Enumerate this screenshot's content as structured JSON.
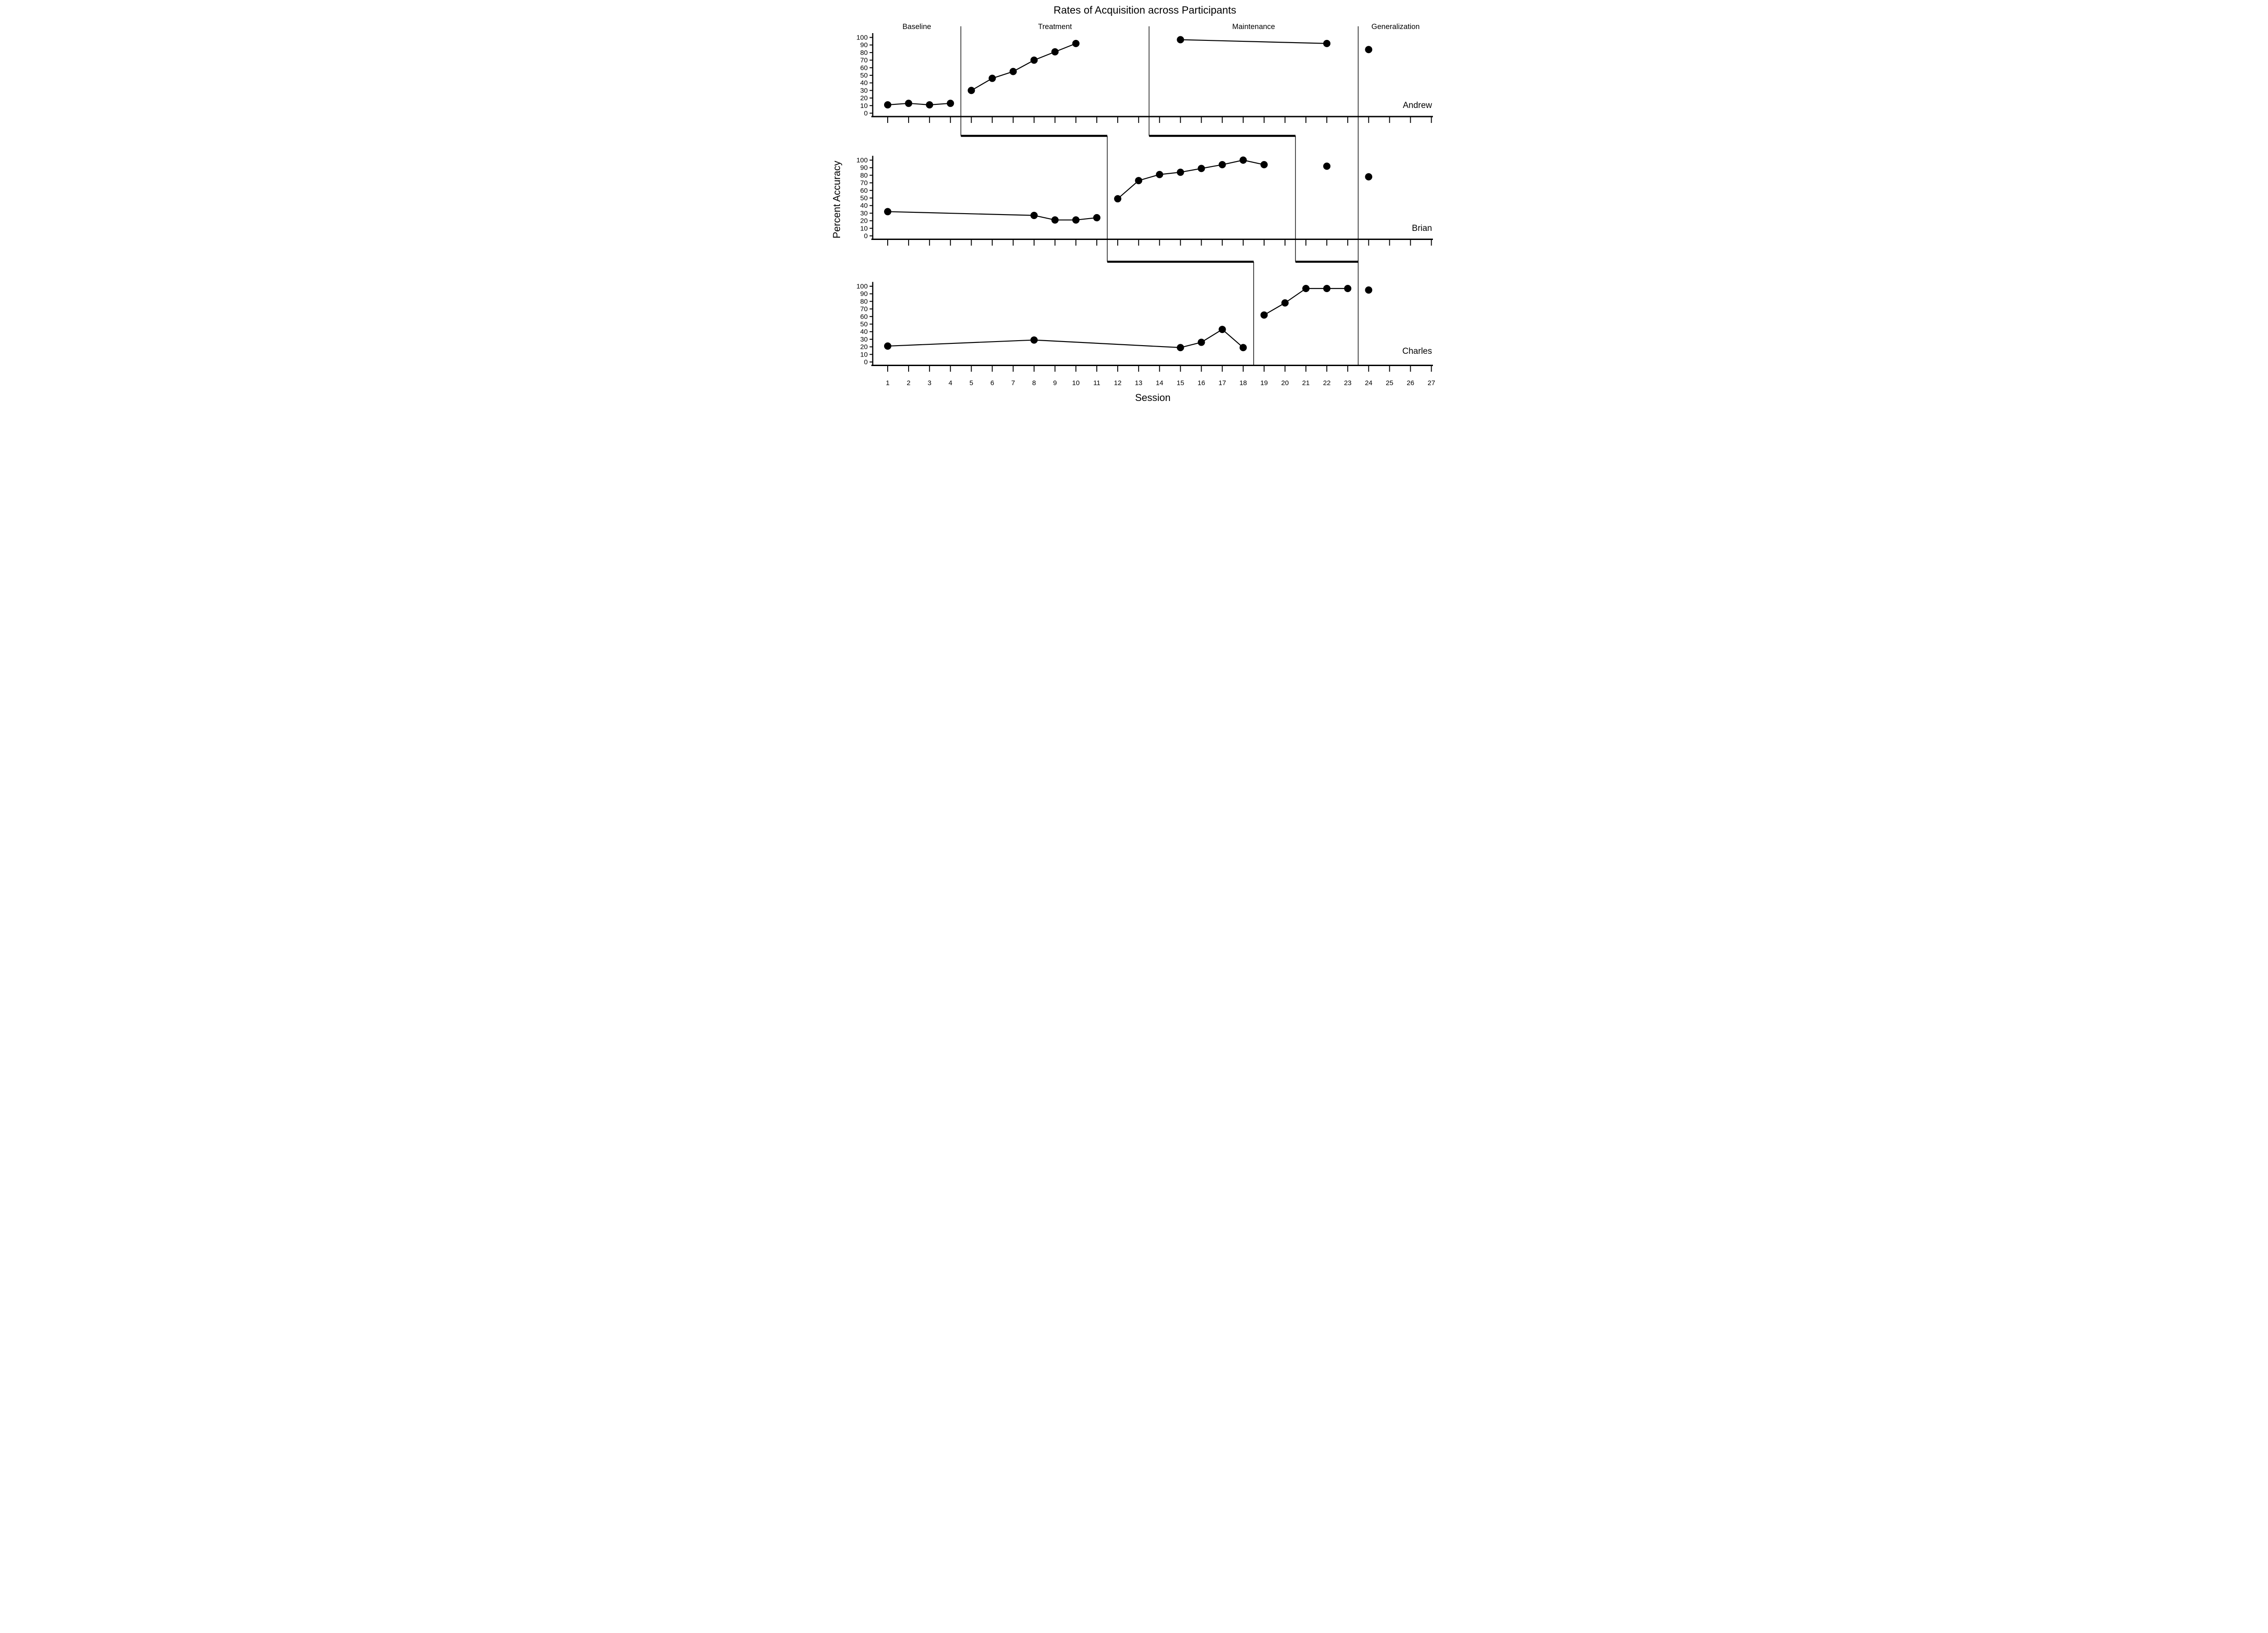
{
  "title": "Rates of Acquisition across Participants",
  "colors": {
    "ink": "#000000",
    "background": "#ffffff"
  },
  "chart_data": {
    "type": "line",
    "title": "Rates of Acquisition across Participants",
    "xlabel": "Session",
    "ylabel": "Percent Accuracy",
    "x_ticks": [
      1,
      2,
      3,
      4,
      5,
      6,
      7,
      8,
      9,
      10,
      11,
      12,
      13,
      14,
      15,
      16,
      17,
      18,
      19,
      20,
      21,
      22,
      23,
      24,
      25,
      26,
      27
    ],
    "y_ticks": [
      0,
      10,
      20,
      30,
      40,
      50,
      60,
      70,
      80,
      90,
      100
    ],
    "xlim": [
      0.3,
      27.7
    ],
    "ylim": [
      0,
      100
    ],
    "grid": false,
    "legend": "none",
    "phase_labels": [
      "Baseline",
      "Treatment",
      "Maintenance",
      "Generalization"
    ],
    "marker": "filled-circle",
    "panels": [
      {
        "participant": "Andrew",
        "series": [
          {
            "phase": "Baseline",
            "points": [
              [
                1,
                11
              ],
              [
                2,
                13
              ],
              [
                3,
                11
              ],
              [
                4,
                13
              ]
            ]
          },
          {
            "phase": "Treatment",
            "points": [
              [
                5,
                30
              ],
              [
                6,
                46
              ],
              [
                7,
                55
              ],
              [
                8,
                70
              ],
              [
                9,
                81
              ],
              [
                10,
                92
              ]
            ]
          },
          {
            "phase": "Maintenance",
            "points": [
              [
                15,
                97
              ],
              [
                22,
                92
              ]
            ]
          },
          {
            "phase": "Generalization",
            "points": [
              [
                24,
                84
              ]
            ]
          }
        ]
      },
      {
        "participant": "Brian",
        "series": [
          {
            "phase": "Baseline",
            "points": [
              [
                1,
                32
              ],
              [
                8,
                27
              ],
              [
                9,
                21
              ],
              [
                10,
                21
              ],
              [
                11,
                24
              ]
            ]
          },
          {
            "phase": "Treatment",
            "points": [
              [
                12,
                49
              ],
              [
                13,
                73
              ],
              [
                14,
                81
              ],
              [
                15,
                84
              ],
              [
                16,
                89
              ],
              [
                17,
                94
              ],
              [
                18,
                100
              ],
              [
                19,
                94
              ]
            ]
          },
          {
            "phase": "Maintenance",
            "points": [
              [
                22,
                92
              ]
            ]
          },
          {
            "phase": "Generalization",
            "points": [
              [
                24,
                78
              ]
            ]
          }
        ]
      },
      {
        "participant": "Charles",
        "series": [
          {
            "phase": "Baseline",
            "points": [
              [
                1,
                21
              ],
              [
                8,
                29
              ],
              [
                15,
                19
              ],
              [
                16,
                26
              ],
              [
                17,
                43
              ],
              [
                18,
                19
              ]
            ]
          },
          {
            "phase": "Treatment",
            "points": [
              [
                19,
                62
              ],
              [
                20,
                78
              ],
              [
                21,
                97
              ],
              [
                22,
                97
              ],
              [
                23,
                97
              ]
            ]
          },
          {
            "phase": "Generalization",
            "points": [
              [
                24,
                95
              ]
            ]
          }
        ]
      }
    ],
    "step_lines": [
      {
        "name": "baseline-to-treatment",
        "xs_by_panel": [
          4.5,
          11.5,
          18.5
        ],
        "end_x": null
      },
      {
        "name": "treatment-to-maintenance",
        "xs_by_panel": [
          13.5,
          20.5
        ],
        "end_x": 23.5
      }
    ],
    "generalization_line_x": 23.5
  }
}
